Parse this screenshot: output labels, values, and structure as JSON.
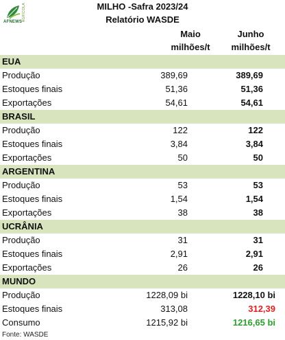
{
  "logo": {
    "brand": "AFNEWS",
    "vertical_text": "AGRÍCOLA"
  },
  "title": "MILHO -Safra 2023/24",
  "subtitle": "Relatório WASDE",
  "columns": {
    "maio_line1": "Maio",
    "maio_line2": "milhões/t",
    "junho_line1": "Junho",
    "junho_line2": "milhões/t"
  },
  "sections": {
    "eua": {
      "name": "EUA",
      "rows": [
        {
          "label": "Produção",
          "maio": "389,69",
          "junho": "389,69"
        },
        {
          "label": "Estoques finais",
          "maio": "51,36",
          "junho": "51,36"
        },
        {
          "label": "Exportações",
          "maio": "54,61",
          "junho": "54,61"
        }
      ]
    },
    "brasil": {
      "name": "BRASIL",
      "rows": [
        {
          "label": "Produção",
          "maio": "122",
          "junho": "122"
        },
        {
          "label": "Estoques finais",
          "maio": "3,84",
          "junho": "3,84"
        },
        {
          "label": "Exportações",
          "maio": "50",
          "junho": "50"
        }
      ]
    },
    "argentina": {
      "name": "ARGENTINA",
      "rows": [
        {
          "label": "Produção",
          "maio": "53",
          "junho": "53"
        },
        {
          "label": "Estoques finais",
          "maio": "1,54",
          "junho": "1,54"
        },
        {
          "label": "Exportações",
          "maio": "38",
          "junho": "38"
        }
      ]
    },
    "ucrania": {
      "name": "UCRÂNIA",
      "rows": [
        {
          "label": "Produção",
          "maio": "31",
          "junho": "31"
        },
        {
          "label": "Estoques finais",
          "maio": "2,91",
          "junho": "2,91"
        },
        {
          "label": "Exportações",
          "maio": "26",
          "junho": "26"
        }
      ]
    },
    "mundo": {
      "name": "MUNDO",
      "rows": [
        {
          "label": "Produção",
          "maio": "1228,09 bi",
          "junho": "1228,10 bi"
        },
        {
          "label": "Estoques finais",
          "maio": "313,08",
          "junho": "312,39"
        },
        {
          "label": "Consumo",
          "maio": "1215,92 bi",
          "junho": "1216,65 bi"
        }
      ]
    }
  },
  "colors": {
    "section_bg": "#d7e4bd",
    "decrease": "#e02020",
    "increase": "#2aa02a",
    "logo": "#1c6b2a"
  },
  "source": "Fonte: WASDE"
}
